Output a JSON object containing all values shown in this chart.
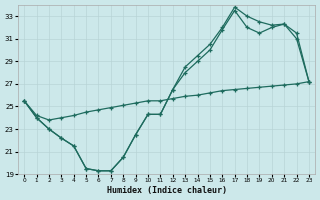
{
  "xlabel": "Humidex (Indice chaleur)",
  "bg_color": "#cce8ea",
  "grid_color": "#b8d4d6",
  "line_color": "#1e6b5e",
  "xlim": [
    -0.5,
    23.5
  ],
  "ylim": [
    19,
    34
  ],
  "xticks": [
    0,
    1,
    2,
    3,
    4,
    5,
    6,
    7,
    8,
    9,
    10,
    11,
    12,
    13,
    14,
    15,
    16,
    17,
    18,
    19,
    20,
    21,
    22,
    23
  ],
  "yticks": [
    19,
    21,
    23,
    25,
    27,
    29,
    31,
    33
  ],
  "line1_x": [
    0,
    1,
    2,
    3,
    4,
    5,
    6,
    7,
    8,
    9,
    10,
    11,
    12,
    13,
    14,
    15,
    16,
    17,
    18,
    19,
    20,
    21,
    22,
    23
  ],
  "line1_y": [
    25.5,
    24.0,
    23.0,
    22.2,
    21.5,
    19.5,
    19.3,
    19.3,
    20.5,
    22.5,
    24.3,
    24.3,
    26.5,
    28.5,
    29.5,
    30.5,
    32.0,
    33.8,
    33.0,
    32.5,
    32.2,
    32.3,
    31.0,
    27.2
  ],
  "line2_x": [
    0,
    1,
    2,
    3,
    4,
    5,
    6,
    7,
    8,
    9,
    10,
    11,
    12,
    13,
    14,
    15,
    16,
    17,
    18,
    19,
    20,
    21,
    22,
    23
  ],
  "line2_y": [
    25.5,
    24.0,
    23.0,
    22.2,
    21.5,
    19.5,
    19.3,
    19.3,
    20.5,
    22.5,
    24.3,
    24.3,
    26.5,
    28.0,
    29.0,
    30.0,
    31.8,
    33.5,
    32.0,
    31.5,
    32.0,
    32.3,
    31.5,
    27.2
  ],
  "line3_x": [
    0,
    1,
    2,
    3,
    4,
    5,
    6,
    7,
    8,
    9,
    10,
    11,
    12,
    13,
    14,
    15,
    16,
    17,
    18,
    19,
    20,
    21,
    22,
    23
  ],
  "line3_y": [
    25.5,
    24.2,
    23.8,
    24.0,
    24.2,
    24.5,
    24.7,
    24.9,
    25.1,
    25.3,
    25.5,
    25.5,
    25.7,
    25.9,
    26.0,
    26.2,
    26.4,
    26.5,
    26.6,
    26.7,
    26.8,
    26.9,
    27.0,
    27.2
  ]
}
